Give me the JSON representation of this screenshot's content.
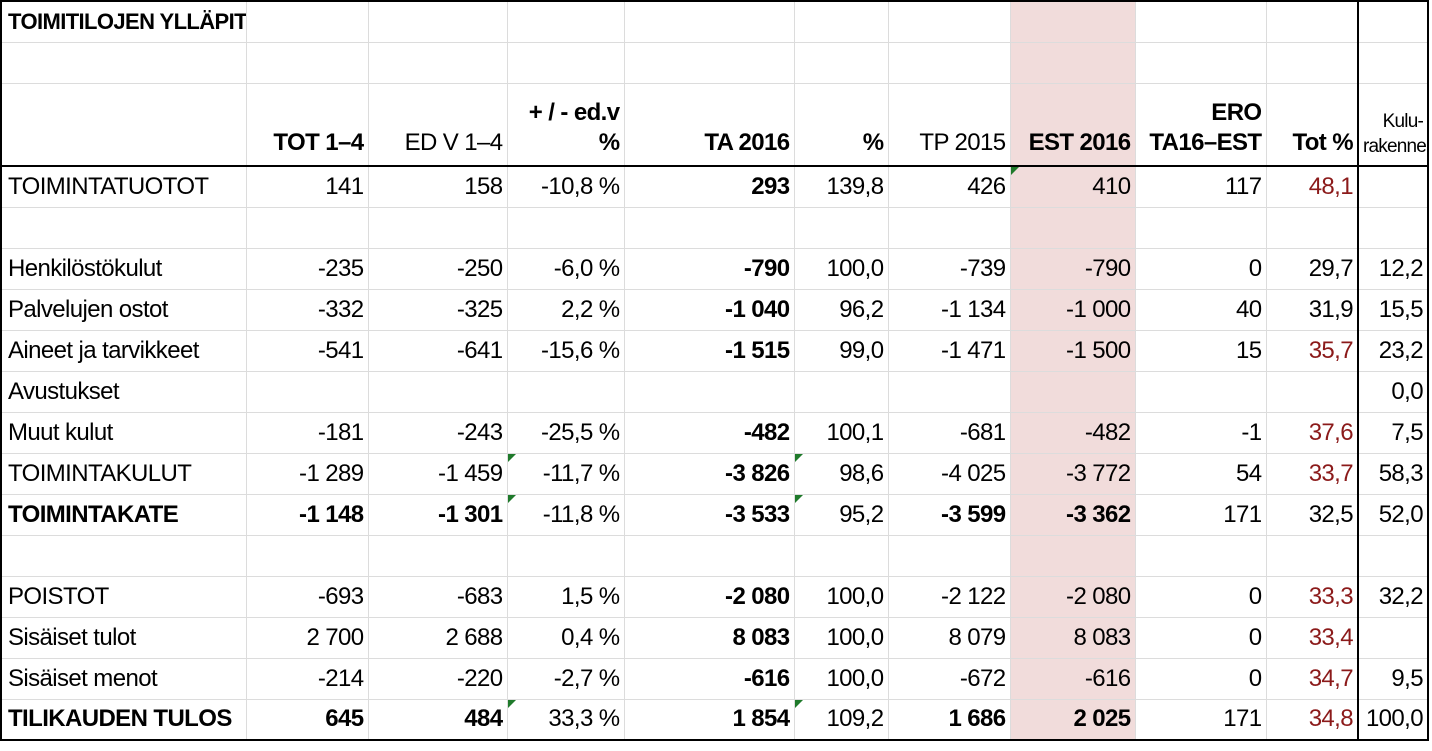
{
  "title": "TOIMITILOJEN YLLÄPITO",
  "headers": {
    "tot": "TOT 1–4",
    "edv": "ED V 1–4",
    "chg_line1": "+ / - ed.v",
    "chg_line2": "%",
    "ta": "TA 2016",
    "pct": "%",
    "tp": "TP 2015",
    "est": "EST 2016",
    "ero_line1": "ERO",
    "ero_line2": "TA16–EST",
    "totpct": "Tot %",
    "kulu_line1": "Kulu-",
    "kulu_line2": "rakenne"
  },
  "rows": [
    {
      "label": "TOIMINTATUOTOT",
      "tot": "141",
      "edv": "158",
      "chg": "-10,8 %",
      "ta": "293",
      "pct": "139,8",
      "tp": "426",
      "est": "410",
      "ero": "117",
      "totpct": "48,1",
      "kulu": ""
    },
    {
      "label": "Henkilöstökulut",
      "tot": "-235",
      "edv": "-250",
      "chg": "-6,0 %",
      "ta": "-790",
      "pct": "100,0",
      "tp": "-739",
      "est": "-790",
      "ero": "0",
      "totpct": "29,7",
      "kulu": "12,2"
    },
    {
      "label": "Palvelujen ostot",
      "tot": "-332",
      "edv": "-325",
      "chg": "2,2 %",
      "ta": "-1 040",
      "pct": "96,2",
      "tp": "-1 134",
      "est": "-1 000",
      "ero": "40",
      "totpct": "31,9",
      "kulu": "15,5"
    },
    {
      "label": "Aineet ja tarvikkeet",
      "tot": "-541",
      "edv": "-641",
      "chg": "-15,6 %",
      "ta": "-1 515",
      "pct": "99,0",
      "tp": "-1 471",
      "est": "-1 500",
      "ero": "15",
      "totpct": "35,7",
      "kulu": "23,2"
    },
    {
      "label": "Avustukset",
      "tot": "",
      "edv": "",
      "chg": "",
      "ta": "",
      "pct": "",
      "tp": "",
      "est": "",
      "ero": "",
      "totpct": "",
      "kulu": "0,0"
    },
    {
      "label": "Muut kulut",
      "tot": "-181",
      "edv": "-243",
      "chg": "-25,5 %",
      "ta": "-482",
      "pct": "100,1",
      "tp": "-681",
      "est": "-482",
      "ero": "-1",
      "totpct": "37,6",
      "kulu": "7,5"
    },
    {
      "label": "TOIMINTAKULUT",
      "tot": "-1 289",
      "edv": "-1 459",
      "chg": "-11,7 %",
      "ta": "-3 826",
      "pct": "98,6",
      "tp": "-4 025",
      "est": "-3 772",
      "ero": "54",
      "totpct": "33,7",
      "kulu": "58,3"
    },
    {
      "label": "TOIMINTAKATE",
      "tot": "-1 148",
      "edv": "-1 301",
      "chg": "-11,8 %",
      "ta": "-3 533",
      "pct": "95,2",
      "tp": "-3 599",
      "est": "-3 362",
      "ero": "171",
      "totpct": "32,5",
      "kulu": "52,0"
    },
    {
      "label": "POISTOT",
      "tot": "-693",
      "edv": "-683",
      "chg": "1,5 %",
      "ta": "-2 080",
      "pct": "100,0",
      "tp": "-2 122",
      "est": "-2 080",
      "ero": "0",
      "totpct": "33,3",
      "kulu": "32,2"
    },
    {
      "label": "Sisäiset tulot",
      "tot": "2 700",
      "edv": "2 688",
      "chg": "0,4 %",
      "ta": "8 083",
      "pct": "100,0",
      "tp": "8 079",
      "est": "8 083",
      "ero": "0",
      "totpct": "33,4",
      "kulu": ""
    },
    {
      "label": "Sisäiset menot",
      "tot": "-214",
      "edv": "-220",
      "chg": "-2,7 %",
      "ta": "-616",
      "pct": "100,0",
      "tp": "-672",
      "est": "-616",
      "ero": "0",
      "totpct": "34,7",
      "kulu": "9,5"
    },
    {
      "label": "TILIKAUDEN TULOS",
      "tot": "645",
      "edv": "484",
      "chg": "33,3 %",
      "ta": "1 854",
      "pct": "109,2",
      "tp": "1 686",
      "est": "2 025",
      "ero": "171",
      "totpct": "34,8",
      "kulu": "100,0"
    }
  ],
  "colors": {
    "est_column_fill": "#f1dcdb",
    "highlight_text": "#8b1a1a",
    "comment_marker": "#1f7a2b"
  }
}
